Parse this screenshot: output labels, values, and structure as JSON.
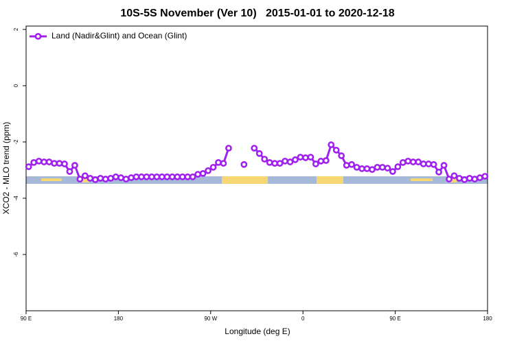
{
  "chart_data": {
    "type": "line",
    "title": "10S-5S November (Ver 10)   2015-01-01 to 2020-12-18",
    "x_label": "Longitude (deg E)",
    "y_label": "XCO2 - MLO trend (ppm)",
    "xlim": [
      90,
      540
    ],
    "ylim": [
      -8,
      2.12
    ],
    "xticks": [
      {
        "value": 90,
        "label": "90 E"
      },
      180,
      {
        "value": 270,
        "label": "90 W"
      },
      {
        "value": 360,
        "label": "0"
      },
      {
        "value": 450,
        "label": "90 E"
      },
      {
        "value": 540,
        "label": "180"
      }
    ],
    "yticks": [
      2,
      0,
      -2,
      -4,
      -6
    ],
    "legend_position": "top-left",
    "x": [
      92.5,
      97.5,
      102.5,
      107.5,
      112.5,
      117.5,
      122.5,
      127.5,
      132.5,
      137.5,
      142.5,
      147.5,
      152.5,
      157.5,
      162.5,
      167.5,
      172.5,
      177.5,
      182.5,
      187.5,
      192.5,
      197.5,
      202.5,
      207.5,
      212.5,
      217.5,
      222.5,
      227.5,
      232.5,
      237.5,
      242.5,
      247.5,
      252.5,
      257.5,
      262.5,
      267.5,
      272.5,
      277.5,
      282.5,
      287.5,
      292.5,
      297.5,
      302.5,
      307.5,
      312.5,
      317.5,
      322.5,
      327.5,
      332.5,
      337.5,
      342.5,
      347.5,
      352.5,
      357.5,
      362.5,
      367.5,
      372.5,
      377.5,
      382.5,
      387.5,
      392.5,
      397.5,
      402.5,
      407.5,
      412.5,
      417.5,
      422.5,
      427.5,
      432.5,
      437.5,
      442.5,
      447.5,
      452.5,
      457.5,
      462.5,
      467.5,
      472.5,
      477.5,
      482.5,
      487.5,
      492.5,
      497.5,
      502.5,
      507.5,
      512.5,
      517.5,
      522.5,
      527.5,
      532.5,
      537.5
    ],
    "series": [
      {
        "name": "Land (Nadir&Glint) and Ocean (Glint)",
        "color": "#a020f0",
        "values": [
          -2.88,
          -2.73,
          -2.68,
          -2.71,
          -2.71,
          -2.76,
          -2.76,
          -2.78,
          -3.05,
          -2.83,
          -3.32,
          -3.2,
          -3.29,
          -3.34,
          -3.29,
          -3.32,
          -3.29,
          -3.24,
          -3.27,
          -3.32,
          -3.27,
          -3.24,
          -3.24,
          -3.24,
          -3.24,
          -3.24,
          -3.24,
          -3.24,
          -3.24,
          -3.24,
          -3.24,
          -3.24,
          -3.24,
          -3.15,
          -3.12,
          -3.02,
          -2.9,
          -2.73,
          -2.76,
          -2.22,
          null,
          null,
          -2.8,
          null,
          -2.22,
          -2.41,
          -2.61,
          -2.73,
          -2.76,
          -2.76,
          -2.68,
          -2.71,
          -2.63,
          -2.54,
          -2.56,
          -2.54,
          -2.78,
          -2.68,
          -2.66,
          -2.1,
          -2.29,
          -2.49,
          -2.83,
          -2.8,
          -2.9,
          -2.95,
          -2.95,
          -2.98,
          -2.9,
          -2.9,
          -2.93,
          -3.05,
          -2.88,
          -2.73,
          -2.68,
          -2.71,
          -2.71,
          -2.78,
          -2.78,
          -2.8,
          -3.07,
          -2.83,
          -3.32,
          -3.2,
          -3.29,
          -3.34,
          -3.29,
          -3.32,
          -3.27,
          -3.22
        ]
      }
    ]
  }
}
